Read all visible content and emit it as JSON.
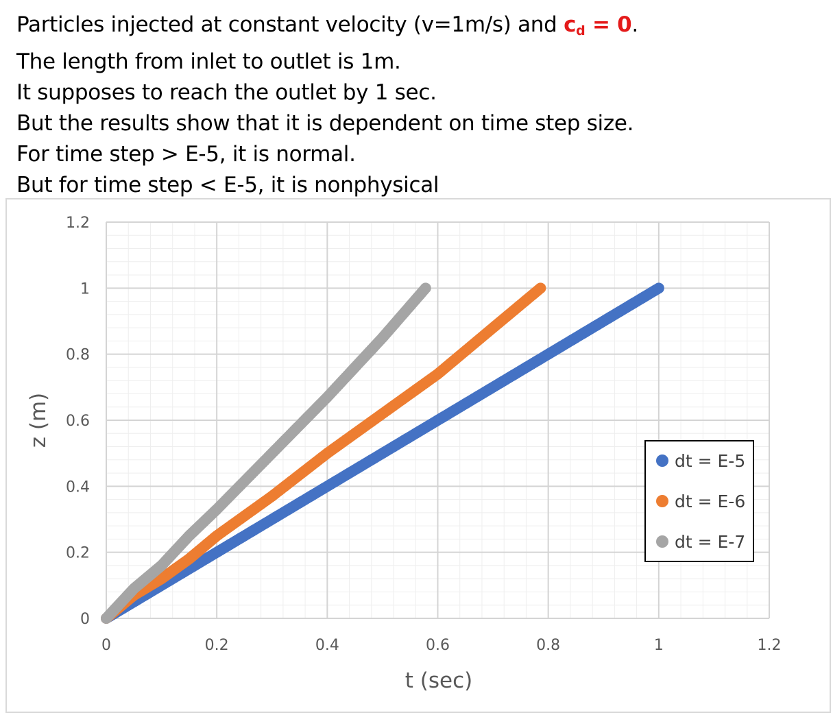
{
  "notes": {
    "line1_before": "Particles injected at constant velocity (v=1m/s) and ",
    "line1_c": "c",
    "line1_sub": "d",
    "line1_eq": " = 0",
    "line1_after": ".",
    "lines": [
      "The length from inlet to outlet is 1m.",
      "It supposes to reach the outlet by 1 sec.",
      "But the results show that it is dependent on time step size.",
      "For time step > E-5, it is normal.",
      "But for time step < E-5,  it is nonphysical"
    ]
  },
  "colors": {
    "highlight": "#e41a1a",
    "series": [
      "#4472c4",
      "#ed7d31",
      "#a5a5a5"
    ]
  },
  "chart_data": {
    "type": "scatter",
    "xlabel": "t (sec)",
    "ylabel": "z (m)",
    "xlim": [
      0,
      1.2
    ],
    "ylim": [
      0,
      1.2
    ],
    "xticks": [
      "0",
      "0.2",
      "0.4",
      "0.6",
      "0.8",
      "1",
      "1.2"
    ],
    "yticks": [
      "0",
      "0.2",
      "0.4",
      "0.6",
      "0.8",
      "1",
      "1.2"
    ],
    "grid": true,
    "legend_position": "right",
    "series": [
      {
        "name": "dt = E-5",
        "color": "#4472c4",
        "points": [
          [
            0,
            0
          ],
          [
            0.1,
            0.1
          ],
          [
            0.2,
            0.2
          ],
          [
            0.3,
            0.3
          ],
          [
            0.4,
            0.4
          ],
          [
            0.5,
            0.5
          ],
          [
            0.6,
            0.6
          ],
          [
            0.7,
            0.7
          ],
          [
            0.8,
            0.8
          ],
          [
            0.9,
            0.9
          ],
          [
            1.0,
            1.0
          ]
        ]
      },
      {
        "name": "dt = E-6",
        "color": "#ed7d31",
        "points": [
          [
            0,
            0
          ],
          [
            0.05,
            0.07
          ],
          [
            0.1,
            0.12
          ],
          [
            0.15,
            0.18
          ],
          [
            0.2,
            0.25
          ],
          [
            0.3,
            0.37
          ],
          [
            0.4,
            0.5
          ],
          [
            0.5,
            0.62
          ],
          [
            0.6,
            0.74
          ],
          [
            0.7,
            0.88
          ],
          [
            0.786,
            1.0
          ]
        ]
      },
      {
        "name": "dt = E-7",
        "color": "#a5a5a5",
        "points": [
          [
            0,
            0
          ],
          [
            0.05,
            0.09
          ],
          [
            0.1,
            0.16
          ],
          [
            0.15,
            0.25
          ],
          [
            0.2,
            0.33
          ],
          [
            0.3,
            0.5
          ],
          [
            0.4,
            0.67
          ],
          [
            0.5,
            0.85
          ],
          [
            0.578,
            1.0
          ]
        ]
      }
    ]
  }
}
